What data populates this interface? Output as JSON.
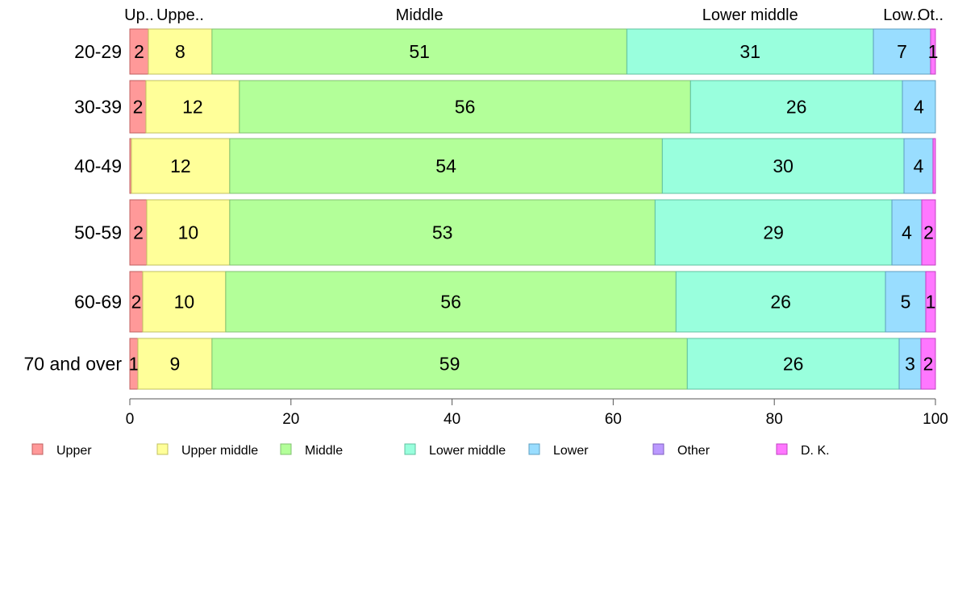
{
  "chart_data": {
    "type": "bar",
    "orientation": "horizontal",
    "stacked": true,
    "title": "",
    "xlabel": "",
    "ylabel": "",
    "xlim": [
      0,
      100
    ],
    "x_ticks": [
      "0",
      "20",
      "40",
      "60",
      "80",
      "100"
    ],
    "categories": [
      "20-29",
      "30-39",
      "40-49",
      "50-59",
      "60-69",
      "70 and over"
    ],
    "top_labels": [
      "Up..",
      "Uppe..",
      "Middle",
      "Lower middle",
      "Low..",
      "Ot..",
      ""
    ],
    "series": [
      {
        "name": "Upper",
        "color": "#FF9999",
        "border": "#C06060",
        "values": [
          2.3,
          2.0,
          0.2,
          2.1,
          1.6,
          1.0
        ],
        "labels": [
          "2",
          "2",
          "",
          "2",
          "2",
          "1"
        ]
      },
      {
        "name": "Upper middle",
        "color": "#FFFF99",
        "border": "#C0C060",
        "values": [
          7.9,
          11.6,
          12.2,
          10.3,
          10.3,
          9.2
        ],
        "labels": [
          "8",
          "12",
          "12",
          "10",
          "10",
          "9"
        ]
      },
      {
        "name": "Middle",
        "color": "#B3FF99",
        "border": "#80C070",
        "values": [
          51.5,
          56.0,
          53.7,
          52.8,
          55.9,
          59.0
        ],
        "labels": [
          "51",
          "56",
          "54",
          "53",
          "56",
          "59"
        ]
      },
      {
        "name": "Lower middle",
        "color": "#99FFDD",
        "border": "#60C0A0",
        "values": [
          30.6,
          26.3,
          30.0,
          29.4,
          26.0,
          26.3
        ],
        "labels": [
          "31",
          "26",
          "30",
          "29",
          "26",
          "26"
        ]
      },
      {
        "name": "Lower",
        "color": "#99DDFF",
        "border": "#60A0C0",
        "values": [
          7.1,
          4.1,
          3.6,
          3.7,
          5.0,
          2.7
        ],
        "labels": [
          "7",
          "4",
          "4",
          "4",
          "5",
          "3"
        ]
      },
      {
        "name": "Other",
        "color": "#BB99FF",
        "border": "#8060C0",
        "values": [
          0,
          0,
          0,
          0,
          0,
          0
        ],
        "labels": [
          "",
          "",
          "",
          "",
          "",
          ""
        ]
      },
      {
        "name": "D. K.",
        "color": "#FF77FF",
        "border": "#C040C0",
        "values": [
          0.6,
          0,
          0.3,
          1.7,
          1.2,
          1.8
        ],
        "labels": [
          "1",
          "",
          "",
          "2",
          "1",
          "2"
        ]
      }
    ],
    "legend": [
      "Upper",
      "Upper middle",
      "Middle",
      "Lower middle",
      "Lower",
      "Other",
      "D. K."
    ],
    "legend_position": "bottom",
    "grid": false
  }
}
